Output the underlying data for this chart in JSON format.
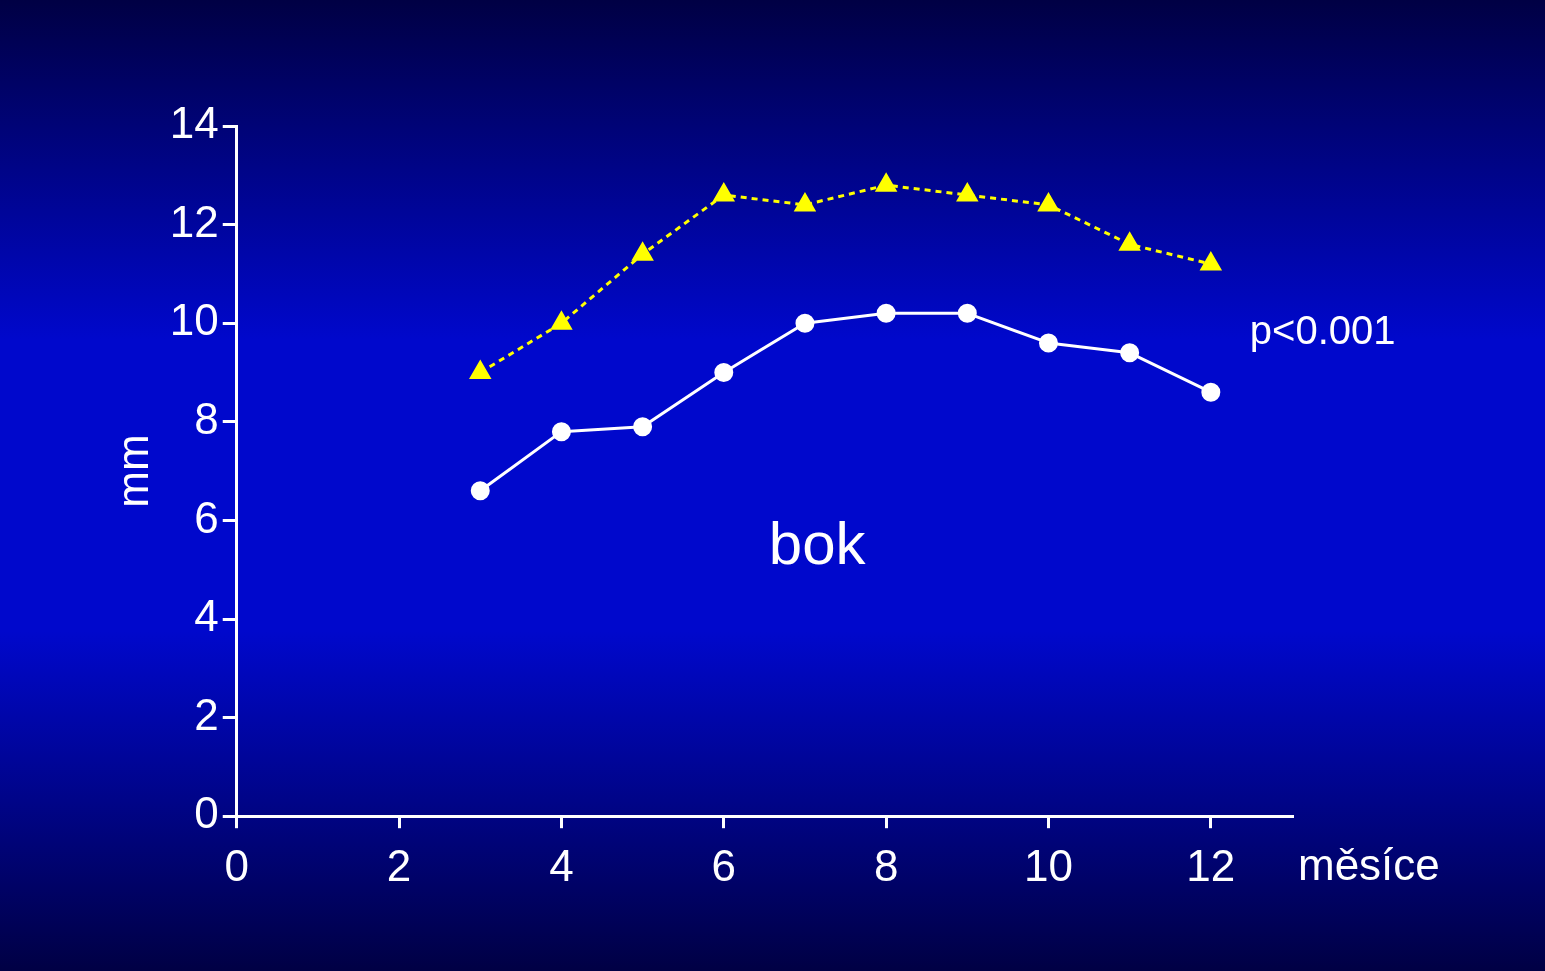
{
  "chart_data": {
    "type": "line",
    "x": [
      3,
      4,
      5,
      6,
      7,
      8,
      9,
      10,
      11,
      12
    ],
    "series": [
      {
        "color": "#ffff00",
        "marker": "triangle",
        "line_style": "dashed",
        "values": [
          9.0,
          10.0,
          11.4,
          12.6,
          12.4,
          12.8,
          12.6,
          12.4,
          11.6,
          11.2
        ]
      },
      {
        "color": "#ffffff",
        "marker": "circle",
        "line_style": "solid",
        "values": [
          6.6,
          7.8,
          7.9,
          9.0,
          10.0,
          10.2,
          10.2,
          9.6,
          9.4,
          8.6
        ]
      }
    ],
    "xlabel": "měsíce",
    "ylabel": "mm",
    "xlim": [
      0,
      13
    ],
    "xticks": [
      0,
      2,
      4,
      6,
      8,
      10,
      12
    ],
    "ylim": [
      0,
      14
    ],
    "yticks": [
      0,
      2,
      4,
      6,
      8,
      10,
      12,
      14
    ],
    "annotations": [
      "p<0.001",
      "bok"
    ],
    "grid": false,
    "legend": false
  }
}
